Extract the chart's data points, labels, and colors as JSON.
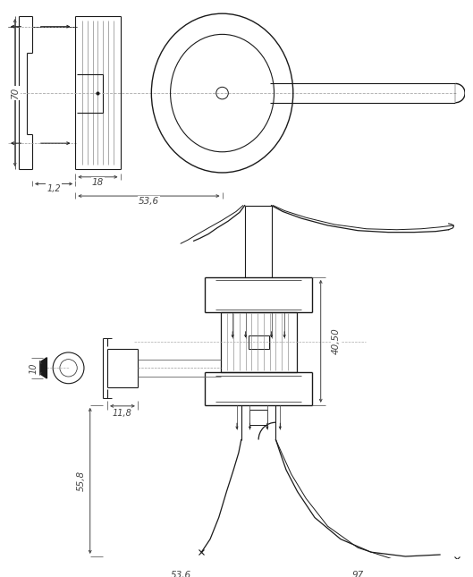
{
  "bg_color": "#ffffff",
  "line_color": "#1a1a1a",
  "dim_color": "#444444",
  "fig_width": 5.29,
  "fig_height": 6.45,
  "dpi": 100
}
